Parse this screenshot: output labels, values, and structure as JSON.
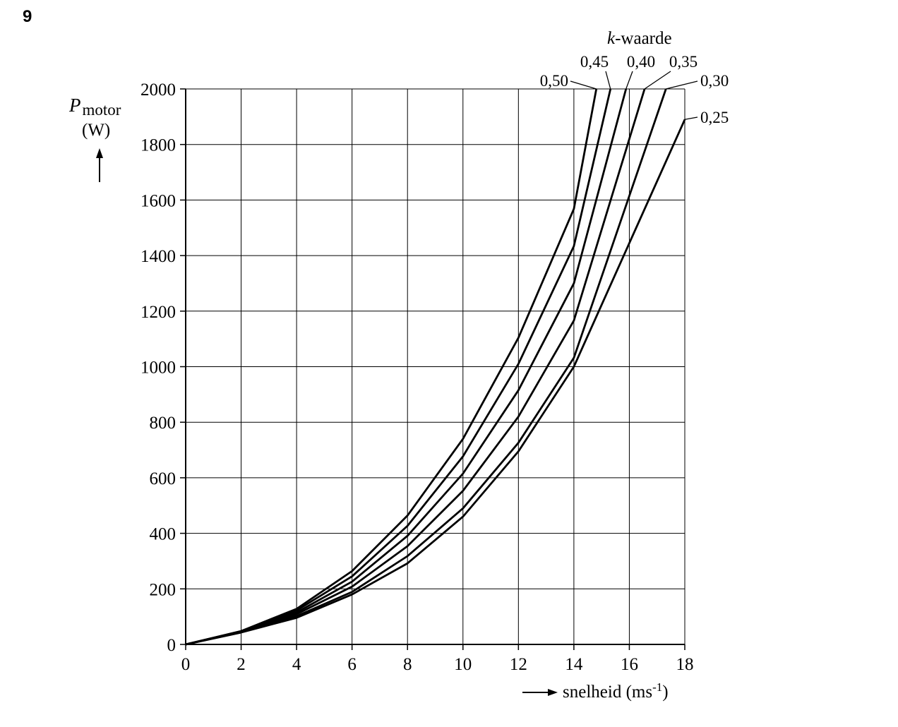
{
  "question_number": "9",
  "chart_data": {
    "type": "line",
    "title": "",
    "ylabel_symbol": "P",
    "ylabel_subscript": "motor",
    "ylabel_unit": "(W)",
    "xlabel_text": "snelheid (ms",
    "xlabel_superscript": "-1",
    "xlabel_close": ")",
    "xlim": [
      0,
      18
    ],
    "ylim": [
      0,
      2000
    ],
    "xticks": [
      "0",
      "2",
      "4",
      "6",
      "8",
      "10",
      "12",
      "14",
      "16",
      "18"
    ],
    "yticks": [
      "0",
      "200",
      "400",
      "600",
      "800",
      "1000",
      "1200",
      "1400",
      "1600",
      "1800",
      "2000"
    ],
    "grid": true,
    "legend_title_italic": "k",
    "legend_title_rest": "-waarde",
    "series": [
      {
        "name": "0,50",
        "k": 0.5,
        "x": [
          0,
          2,
          4,
          6,
          8,
          10,
          12,
          14,
          14.81
        ],
        "y": [
          0,
          48,
          128,
          264,
          464,
          740,
          1104,
          1568,
          2000
        ]
      },
      {
        "name": "0,45",
        "k": 0.45,
        "x": [
          0,
          2,
          4,
          6,
          8,
          10,
          12,
          14,
          15.32
        ],
        "y": [
          0,
          47,
          122,
          245,
          427,
          677,
          1010,
          1434,
          2000
        ]
      },
      {
        "name": "0,40",
        "k": 0.4,
        "x": [
          0,
          2,
          4,
          6,
          8,
          10,
          12,
          14,
          15.88
        ],
        "y": [
          0,
          46,
          115,
          226,
          391,
          615,
          915,
          1300,
          2000
        ]
      },
      {
        "name": "0,35",
        "k": 0.35,
        "x": [
          0,
          2,
          4,
          6,
          8,
          10,
          12,
          14,
          16.55
        ],
        "y": [
          0,
          45,
          109,
          208,
          354,
          553,
          820,
          1166,
          2000
        ]
      },
      {
        "name": "0,30",
        "k": 0.3,
        "x": [
          0,
          2,
          4,
          6,
          8,
          10,
          12,
          14,
          17.32
        ],
        "y": [
          0,
          44,
          102,
          189,
          318,
          490,
          726,
          1032,
          2000
        ]
      },
      {
        "name": "0,25",
        "k": 0.25,
        "x": [
          0,
          2,
          4,
          6,
          8,
          10,
          12,
          14,
          18
        ],
        "y": [
          0,
          43,
          96,
          180,
          292,
          460,
          695,
          1000,
          1890
        ]
      }
    ]
  }
}
